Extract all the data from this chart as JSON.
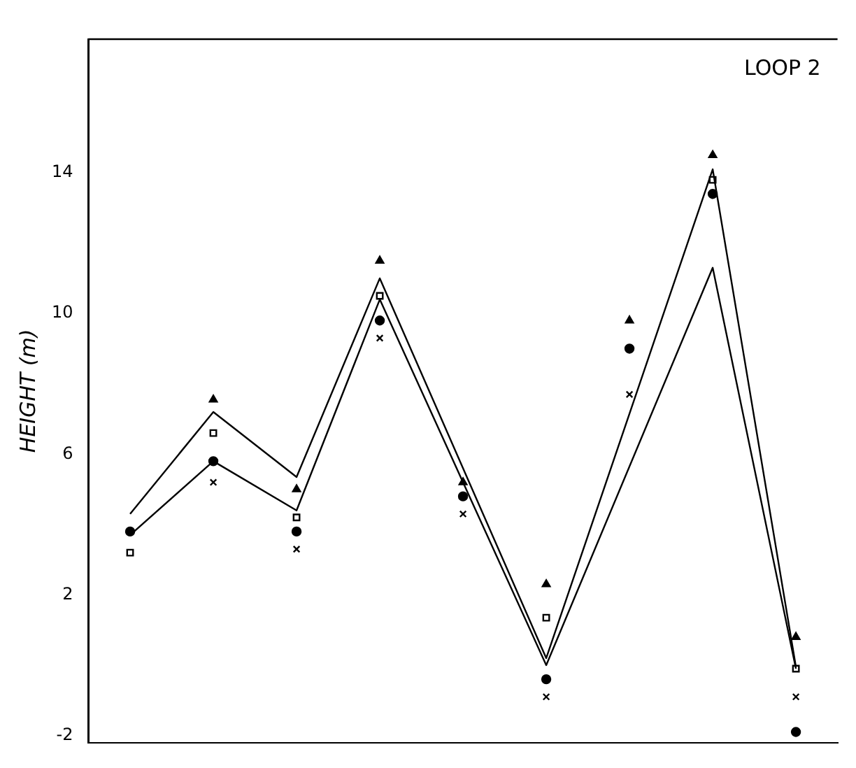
{
  "chart_data": {
    "type": "line",
    "ylabel": "HEIGHT (m)",
    "annotations": [
      "LOOP 2"
    ],
    "categories": [
      null,
      null,
      null,
      null,
      null,
      null,
      null,
      null,
      null
    ],
    "series": [
      {
        "type": "line",
        "color": "#000000",
        "marker": "none",
        "values": [
          4.3,
          7.2,
          5.35,
          11.0,
          null,
          0.2,
          null,
          14.1,
          -0.05
        ]
      },
      {
        "type": "line",
        "color": "#000000",
        "marker": "none",
        "values": [
          3.7,
          5.8,
          4.4,
          10.4,
          null,
          0.0,
          null,
          11.3,
          -0.1
        ]
      },
      {
        "type": "scatter",
        "color": "#000000",
        "marker": "triangle",
        "values": [
          null,
          7.55,
          5.0,
          11.5,
          5.2,
          2.3,
          9.8,
          14.5,
          0.8
        ]
      },
      {
        "type": "scatter",
        "color": "#000000",
        "marker": "square",
        "values": [
          3.2,
          6.6,
          4.2,
          10.5,
          null,
          1.35,
          null,
          13.8,
          -0.1
        ]
      },
      {
        "type": "scatter",
        "color": "#000000",
        "marker": "circle",
        "values": [
          3.8,
          5.8,
          3.8,
          9.8,
          4.8,
          -0.4,
          9.0,
          13.4,
          -1.9
        ]
      },
      {
        "type": "scatter",
        "color": "#000000",
        "marker": "cross",
        "values": [
          null,
          5.2,
          3.3,
          9.3,
          4.3,
          -0.9,
          7.7,
          null,
          -0.9
        ]
      }
    ],
    "ylim": [
      -2.2,
      17.8
    ],
    "yticks": [
      -2,
      2,
      6,
      10,
      14
    ],
    "tick_labels": "y",
    "grid": false,
    "legend": false
  }
}
